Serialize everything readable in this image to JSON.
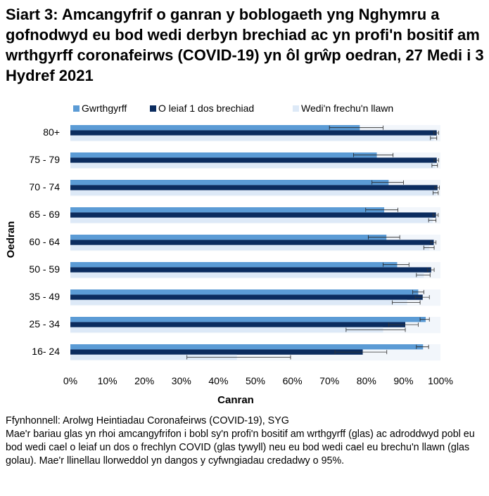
{
  "title": "Siart 3: Amcangyfrif o ganran y boblogaeth yng Nghymru a gofnodwyd eu bod wedi derbyn brechiad ac yn profi'n bositif am wrthgyrff coronafeirws (COVID-19) yn ôl grŵp oedran, 27 Medi i 3 Hydref 2021",
  "notes": {
    "source": "Ffynhonnell: Arolwg Heintiadau Coronafeirws (COVID-19), SYG",
    "description": "Mae'r bariau glas yn rhoi amcangyfrifon i bobl sy'n profi'n bositif am wrthgyrff (glas) ac adroddwyd pobl eu bod wedi cael o leiaf un dos o frechlyn COVID (glas tywyll) neu eu bod wedi cael eu brechu'n llawn (glas golau).  Mae'r llinellau llorweddol yn dangos y cyfwngiadau credadwy o 95%."
  },
  "chart_data": {
    "type": "bar",
    "orientation": "horizontal",
    "xlabel": "Canran",
    "ylabel": "Oedran",
    "xlim": [
      0,
      100
    ],
    "xticks": [
      "0%",
      "10%",
      "20%",
      "30%",
      "40%",
      "50%",
      "60%",
      "70%",
      "80%",
      "90%",
      "100%"
    ],
    "legend_position": "top",
    "categories": [
      "80+",
      "75 - 79",
      "70 - 74",
      "65 - 69",
      "60 - 64",
      "50 - 59",
      "35 - 49",
      "25 - 34",
      "16- 24"
    ],
    "series": [
      {
        "name": "Gwrthgyrff",
        "color": "#5b9bd5",
        "values": [
          78.2,
          82.8,
          86.0,
          84.8,
          85.4,
          88.3,
          94.0,
          96.0,
          95.3
        ],
        "ci": [
          [
            70,
            84.5
          ],
          [
            76.5,
            87.2
          ],
          [
            81.5,
            90
          ],
          [
            79.8,
            88.5
          ],
          [
            80.5,
            89
          ],
          [
            84.5,
            91.5
          ],
          [
            92.5,
            95.5
          ],
          [
            94.5,
            97
          ],
          [
            93.5,
            96.8
          ]
        ]
      },
      {
        "name": "O leiaf 1 dos brechiad",
        "color": "#0b2c5f",
        "values": [
          99.0,
          99.0,
          99.2,
          98.8,
          98.2,
          97.5,
          95.2,
          90.5,
          79.0
        ],
        "ci": [
          [
            98.2,
            99.5
          ],
          [
            98.3,
            99.5
          ],
          [
            98.5,
            99.7
          ],
          [
            98,
            99.4
          ],
          [
            97.4,
            98.8
          ],
          [
            96.5,
            98.3
          ],
          [
            93.2,
            97
          ],
          [
            86,
            94
          ],
          [
            71.5,
            85.5
          ]
        ]
      },
      {
        "name": "Wedi'n frechu'n llawn",
        "color": "#dde9f7",
        "values": [
          98.2,
          98.6,
          98.9,
          97.9,
          97.0,
          95.5,
          91.0,
          84.5,
          45.0
        ],
        "ci": [
          [
            97.3,
            99
          ],
          [
            97.7,
            99.2
          ],
          [
            98,
            99.4
          ],
          [
            96.8,
            98.8
          ],
          [
            95.5,
            98.3
          ],
          [
            93.5,
            97.2
          ],
          [
            87,
            94.5
          ],
          [
            74.5,
            90.5
          ],
          [
            31.5,
            59.5
          ]
        ]
      }
    ]
  }
}
